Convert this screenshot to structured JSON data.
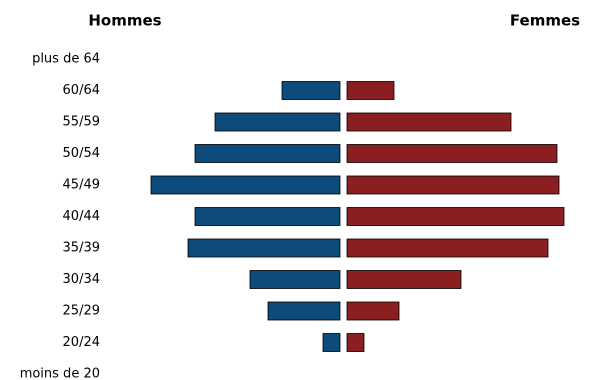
{
  "chart_data": {
    "type": "population-pyramid",
    "categories": [
      "plus de 64",
      "60/64",
      "55/59",
      "50/54",
      "45/49",
      "40/44",
      "35/39",
      "30/34",
      "25/29",
      "20/24",
      "moins de 20"
    ],
    "series": [
      {
        "name": "Hommes",
        "color": "#0d4b7c",
        "values": [
          0,
          58,
          125,
          145,
          189,
          145,
          152,
          90,
          72,
          17,
          0
        ]
      },
      {
        "name": "Femmes",
        "color": "#8b1e21",
        "values": [
          0,
          47,
          164,
          210,
          212,
          217,
          201,
          114,
          52,
          17,
          0
        ]
      }
    ]
  }
}
